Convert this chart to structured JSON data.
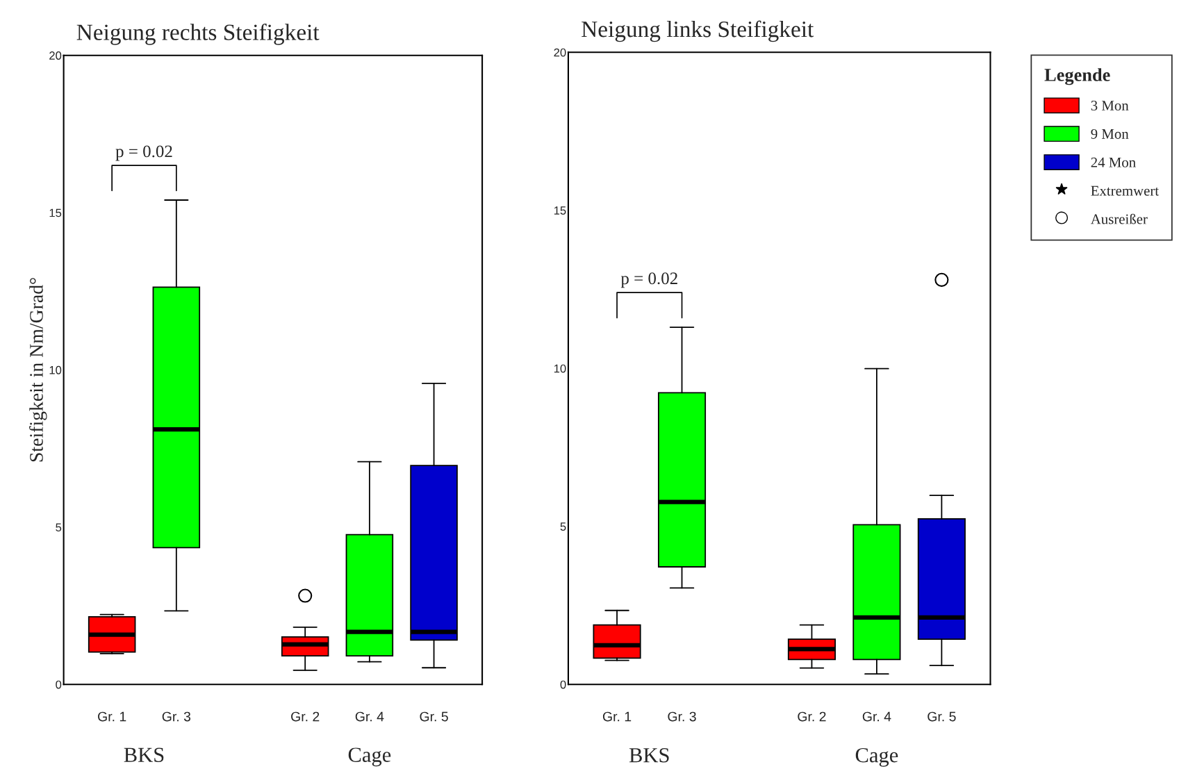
{
  "chart_data": [
    {
      "type": "box",
      "title": "Neigung rechts Steifigkeit",
      "ylabel": "Steifigkeit in Nm/Grad°",
      "categories": [
        "Gr. 1",
        "Gr. 3",
        null,
        "Gr. 2",
        "Gr. 4",
        "Gr. 5"
      ],
      "ylim": [
        0,
        20
      ],
      "yticks": [
        0,
        5,
        10,
        15,
        20
      ],
      "grid": false,
      "legend": false,
      "annotations": [
        "BKS",
        "Cage",
        "p = 0.02"
      ],
      "series": [
        {
          "color": "#ff0000",
          "boxes": [
            {
              "low": 0.98,
              "q1": 1.03,
              "median": 1.58,
              "q3": 2.15,
              "high": 2.22
            },
            null,
            null,
            {
              "low": 0.45,
              "q1": 0.91,
              "median": 1.27,
              "q3": 1.51,
              "high": 1.82,
              "outliers": [
                2.82
              ]
            },
            null,
            null
          ]
        },
        {
          "color": "#00ff00",
          "boxes": [
            null,
            {
              "low": 2.34,
              "q1": 4.35,
              "median": 8.11,
              "q3": 12.63,
              "high": 15.4
            },
            null,
            null,
            {
              "low": 0.72,
              "q1": 0.91,
              "median": 1.67,
              "q3": 4.76,
              "high": 7.08
            },
            null
          ]
        },
        {
          "color": "#0000cc",
          "boxes": [
            null,
            null,
            null,
            null,
            null,
            {
              "low": 0.53,
              "q1": 1.41,
              "median": 1.67,
              "q3": 6.96,
              "high": 9.57
            }
          ]
        }
      ]
    },
    {
      "type": "box",
      "title": "Neigung links Steifigkeit",
      "categories": [
        "Gr. 1",
        "Gr. 3",
        null,
        "Gr. 2",
        "Gr. 4",
        "Gr. 5"
      ],
      "ylim": [
        0,
        20
      ],
      "yticks": [
        0,
        5,
        10,
        15,
        20
      ],
      "grid": false,
      "legend": "right",
      "legend_title": "Legende",
      "annotations": [
        "BKS",
        "Cage",
        "p = 0.02"
      ],
      "series": [
        {
          "name": "3 Mon",
          "color": "#ff0000",
          "boxes": [
            {
              "low": 0.76,
              "q1": 0.83,
              "median": 1.24,
              "q3": 1.88,
              "high": 2.34
            },
            null,
            null,
            {
              "low": 0.52,
              "q1": 0.79,
              "median": 1.12,
              "q3": 1.43,
              "high": 1.88
            },
            null,
            null
          ]
        },
        {
          "name": "9 Mon",
          "color": "#00ff00",
          "boxes": [
            null,
            {
              "low": 3.05,
              "q1": 3.72,
              "median": 5.77,
              "q3": 9.23,
              "high": 11.3
            },
            null,
            null,
            {
              "low": 0.33,
              "q1": 0.79,
              "median": 2.12,
              "q3": 5.05,
              "high": 9.99
            },
            null
          ]
        },
        {
          "name": "24 Mon",
          "color": "#0000cc",
          "boxes": [
            null,
            null,
            null,
            null,
            null,
            {
              "low": 0.6,
              "q1": 1.43,
              "median": 2.12,
              "q3": 5.24,
              "high": 5.98,
              "outliers": [
                12.8
              ]
            }
          ]
        },
        {
          "name": "Extremwert",
          "type": "scatter",
          "marker": "star",
          "color": "#000000",
          "values": [
            null,
            null,
            null,
            null,
            null,
            null
          ]
        },
        {
          "name": "Ausreißer",
          "type": "scatter",
          "marker": "circle",
          "color": "#000000",
          "values": [
            null,
            null,
            null,
            null,
            null,
            null
          ]
        }
      ]
    }
  ]
}
